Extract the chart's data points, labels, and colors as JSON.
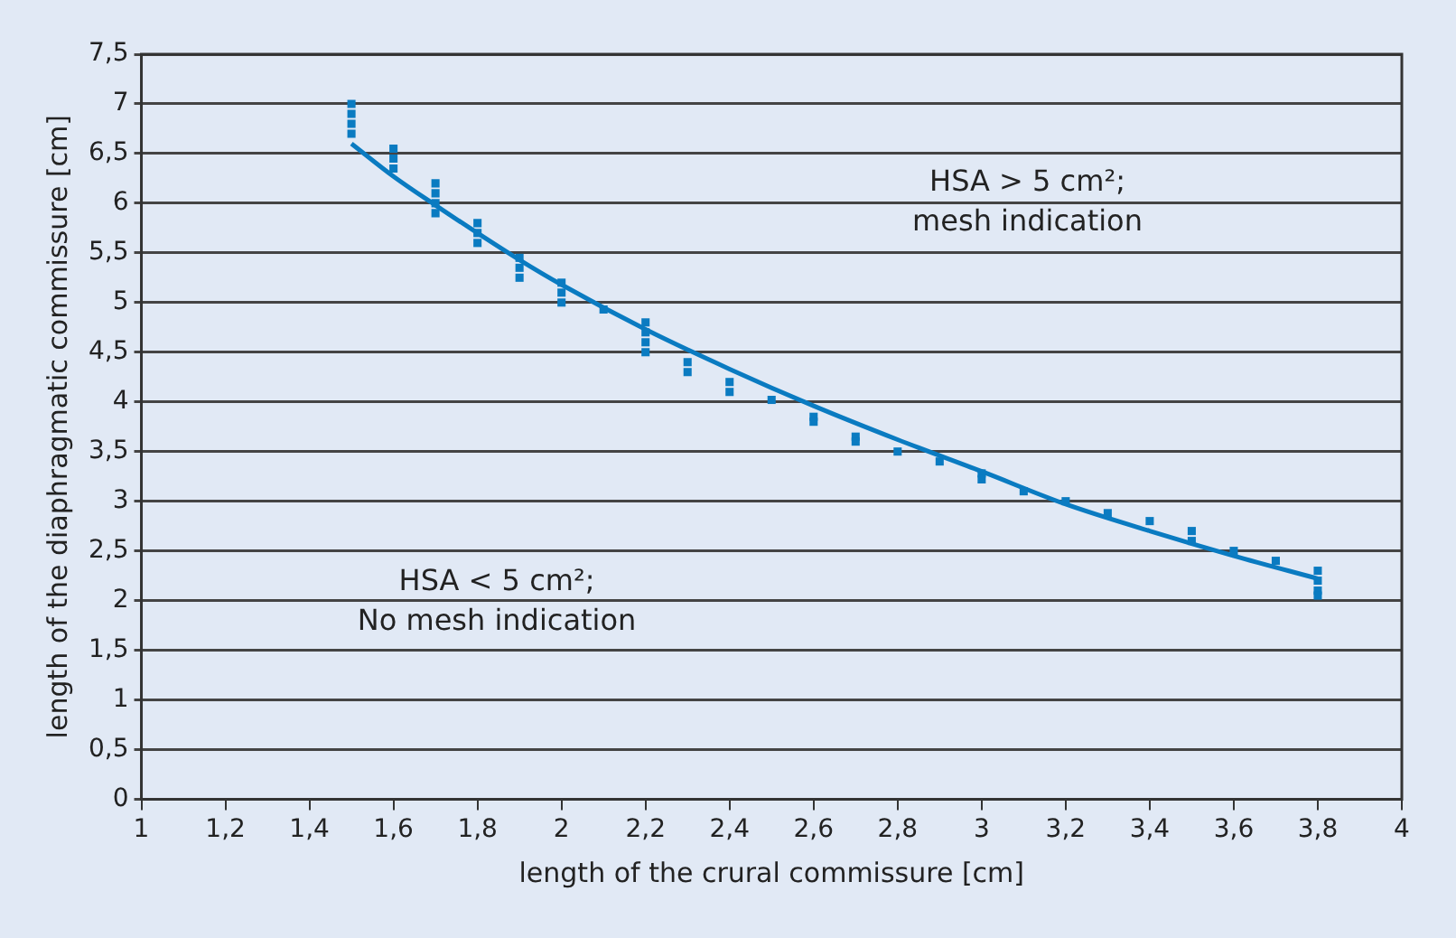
{
  "chart_data": {
    "type": "scatter",
    "xlabel": "length of the crural commissure [cm]",
    "ylabel": "length of the diaphragmatic commissure [cm]",
    "xlim": [
      1,
      4
    ],
    "ylim": [
      0,
      7.5
    ],
    "xticks": [
      1,
      {
        "value": 1.2,
        "label": "1,2"
      },
      {
        "value": 1.4,
        "label": "1,4"
      },
      {
        "value": 1.6,
        "label": "1,6"
      },
      {
        "value": 1.8,
        "label": "1,8"
      },
      2,
      {
        "value": 2.2,
        "label": "2,2"
      },
      {
        "value": 2.4,
        "label": "2,4"
      },
      {
        "value": 2.6,
        "label": "2,6"
      },
      {
        "value": 2.8,
        "label": "2,8"
      },
      3,
      {
        "value": 3.2,
        "label": "3,2"
      },
      {
        "value": 3.4,
        "label": "3,4"
      },
      {
        "value": 3.6,
        "label": "3,6"
      },
      {
        "value": 3.8,
        "label": "3,8"
      },
      4
    ],
    "yticks": [
      0,
      {
        "value": 0.5,
        "label": "0,5"
      },
      1,
      {
        "value": 1.5,
        "label": "1,5"
      },
      2,
      {
        "value": 2.5,
        "label": "2,5"
      },
      3,
      {
        "value": 3.5,
        "label": "3,5"
      },
      4,
      {
        "value": 4.5,
        "label": "4,5"
      },
      5,
      {
        "value": 5.5,
        "label": "5,5"
      },
      6,
      {
        "value": 6.5,
        "label": "6,5"
      },
      7,
      {
        "value": 7.5,
        "label": "7,5"
      }
    ],
    "grid": "y",
    "legend": false,
    "series": [
      {
        "color": "#0a7bc1",
        "marker": "square",
        "x": [
          1.5,
          1.5,
          1.5,
          1.5,
          1.6,
          1.6,
          1.6,
          1.7,
          1.7,
          1.7,
          1.7,
          1.8,
          1.8,
          1.8,
          1.9,
          1.9,
          1.9,
          2.0,
          2.0,
          2.0,
          2.1,
          2.2,
          2.2,
          2.2,
          2.2,
          2.3,
          2.3,
          2.4,
          2.4,
          2.5,
          2.6,
          2.6,
          2.7,
          2.7,
          2.8,
          2.9,
          3.0,
          3.0,
          3.1,
          3.2,
          3.3,
          3.4,
          3.5,
          3.5,
          3.6,
          3.7,
          3.8,
          3.8,
          3.8,
          3.8
        ],
        "values": [
          7.0,
          6.9,
          6.8,
          6.7,
          6.55,
          6.45,
          6.35,
          6.2,
          6.1,
          6.0,
          5.9,
          5.8,
          5.7,
          5.6,
          5.45,
          5.35,
          5.25,
          5.2,
          5.1,
          5.0,
          4.93,
          4.8,
          4.7,
          4.6,
          4.5,
          4.4,
          4.3,
          4.2,
          4.1,
          4.02,
          3.85,
          3.8,
          3.65,
          3.6,
          3.5,
          3.4,
          3.28,
          3.22,
          3.1,
          3.0,
          2.88,
          2.8,
          2.7,
          2.6,
          2.5,
          2.4,
          2.3,
          2.2,
          2.1,
          2.05
        ]
      },
      {
        "type": "line",
        "color": "#0a7bc1",
        "marker": "none",
        "line_style": "solid",
        "x": [
          1.5,
          1.6,
          1.7,
          1.8,
          1.9,
          2.0,
          2.2,
          2.4,
          2.6,
          2.8,
          3.0,
          3.2,
          3.4,
          3.6,
          3.8
        ],
        "values": [
          6.6,
          6.27,
          5.98,
          5.7,
          5.43,
          5.18,
          4.73,
          4.33,
          3.96,
          3.62,
          3.3,
          2.97,
          2.7,
          2.45,
          2.22
        ]
      }
    ],
    "annotations": [
      "HSA > 5 cm²;\nmesh indication",
      "HSA < 5 cm²;\nNo mesh indication"
    ]
  }
}
